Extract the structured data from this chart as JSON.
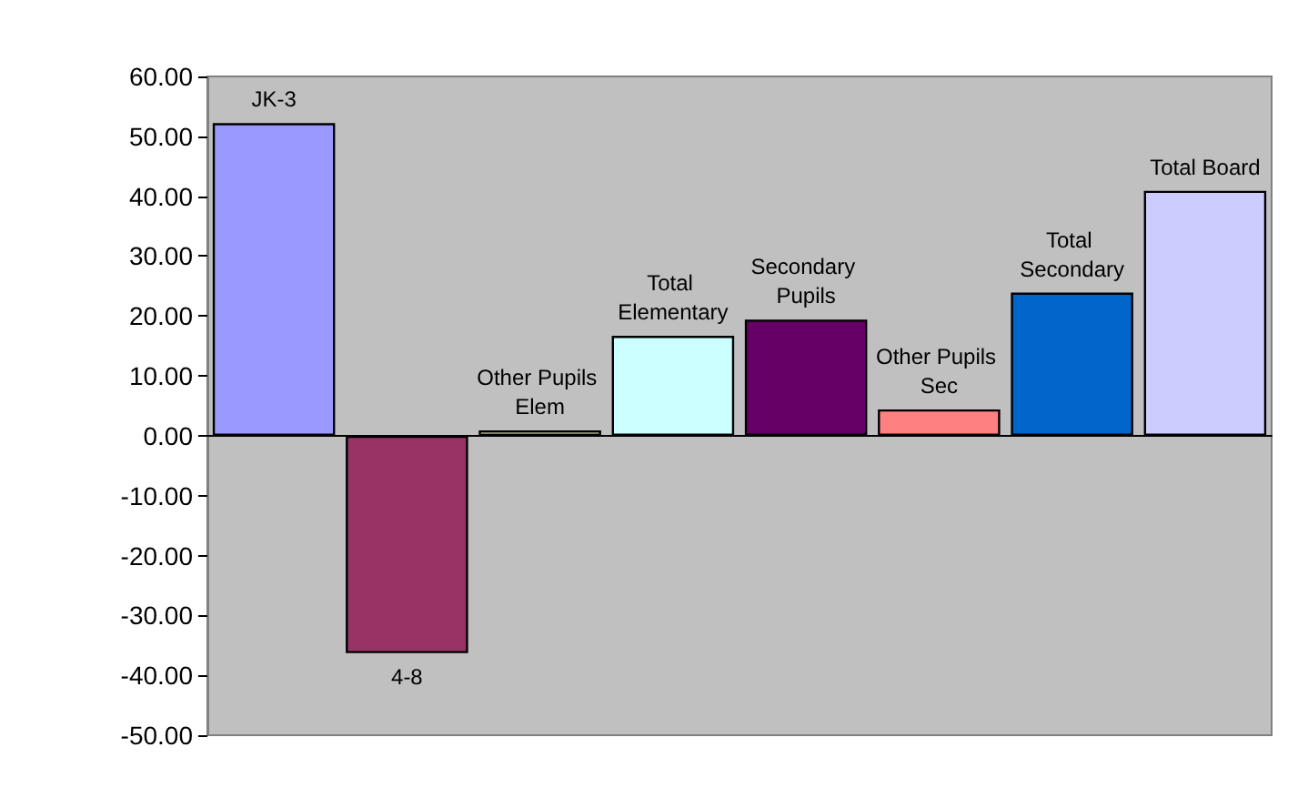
{
  "chart_data": {
    "type": "bar",
    "categories": [
      "JK-3",
      "4-8",
      "Other Pupils Elem",
      "Total Elementary",
      "Secondary Pupils",
      "Other Pupils Sec",
      "Total Secondary",
      "Total Board"
    ],
    "values": [
      52.2,
      -36.3,
      0.9,
      16.7,
      19.4,
      4.4,
      23.9,
      40.9
    ],
    "colors": [
      "#9999ff",
      "#993366",
      "#ffffcc",
      "#ccffff",
      "#660066",
      "#ff8080",
      "#0066cc",
      "#ccccff"
    ],
    "ylim": [
      -50,
      60
    ],
    "yticks": [
      {
        "value": -50,
        "label": "-50.00"
      },
      {
        "value": -40,
        "label": "-40.00"
      },
      {
        "value": -30,
        "label": "-30.00"
      },
      {
        "value": -20,
        "label": "-20.00"
      },
      {
        "value": -10,
        "label": "-10.00"
      },
      {
        "value": 0,
        "label": "0.00"
      },
      {
        "value": 10,
        "label": "10.00"
      },
      {
        "value": 20,
        "label": "20.00"
      },
      {
        "value": 30,
        "label": "30.00"
      },
      {
        "value": 40,
        "label": "40.00"
      },
      {
        "value": 50,
        "label": "50.00"
      },
      {
        "value": 60,
        "label": "60.00"
      }
    ],
    "tick_labels": "y"
  }
}
